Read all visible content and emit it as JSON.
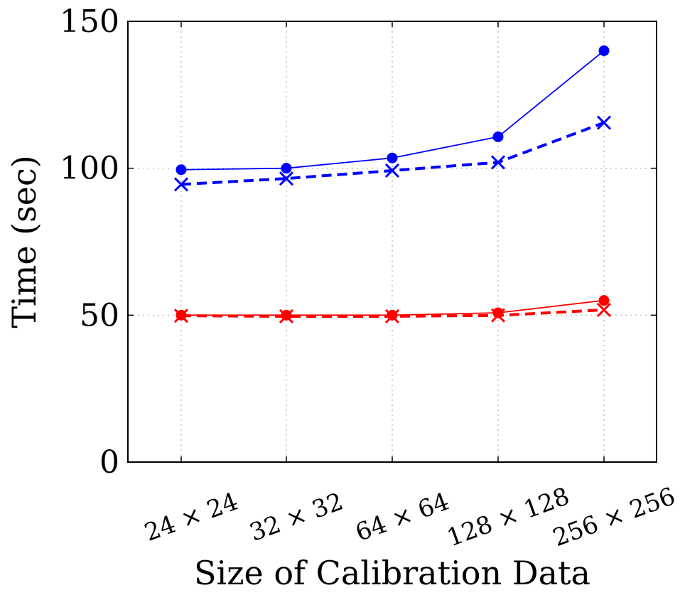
{
  "chart_data": {
    "type": "line",
    "categories": [
      "24 × 24",
      "32 × 32",
      "64 × 64",
      "128 × 128",
      "256 × 256"
    ],
    "xlabel": "Size of Calibration Data",
    "ylabel": "Time (sec)",
    "ylim": [
      0,
      150
    ],
    "yticks": [
      0,
      50,
      100,
      150
    ],
    "grid": "dotted",
    "legend": "none",
    "series": [
      {
        "color": "#0000ff",
        "marker": "circle",
        "style": "solid",
        "values": [
          99.5,
          100.0,
          103.5,
          110.7,
          140.0
        ]
      },
      {
        "color": "#0000ff",
        "marker": "x",
        "style": "dashed",
        "values": [
          94.5,
          96.5,
          99.2,
          102.0,
          115.5
        ]
      },
      {
        "color": "#ff0000",
        "marker": "circle",
        "style": "solid",
        "values": [
          50.0,
          50.0,
          50.0,
          50.8,
          55.0
        ]
      },
      {
        "color": "#ff0000",
        "marker": "x",
        "style": "dashed",
        "values": [
          49.8,
          49.6,
          49.6,
          49.9,
          51.8
        ]
      }
    ]
  }
}
